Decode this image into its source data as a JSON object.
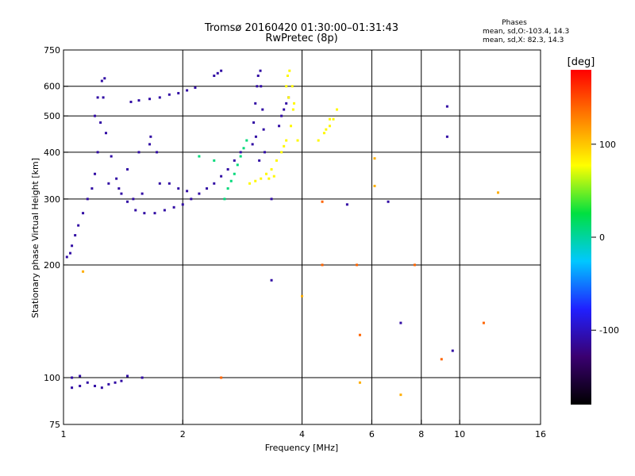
{
  "chart_data": {
    "type": "scatter",
    "title": "Tromsø 20160420 01:30:00–01:31:43",
    "subtitle": "RwPretec (8p)",
    "xlabel": "Frequency [MHz]",
    "ylabel": "Stationary phase Virtual Height [km]",
    "x_scale": "log2",
    "y_scale": "log",
    "xlim": [
      1,
      16
    ],
    "ylim": [
      75,
      750
    ],
    "xticks": [
      1,
      2,
      4,
      6,
      8,
      10,
      16
    ],
    "xtick_labels": [
      "1",
      "2",
      "4",
      "6",
      "8",
      "10",
      "16"
    ],
    "yticks": [
      75,
      100,
      200,
      300,
      400,
      500,
      600,
      750
    ],
    "ytick_labels": [
      "75",
      "100",
      "200",
      "300",
      "400",
      "500",
      "600",
      "750"
    ],
    "grid": true,
    "stats_header": "Phases",
    "stats": [
      "mean, sd,O:-103.4, 14.3",
      "mean, sd,X:  82.3, 14.3"
    ],
    "colorbar": {
      "label": "[deg]",
      "range": [
        -180,
        180
      ],
      "ticks": [
        100,
        0,
        -100
      ],
      "tick_labels": [
        "100",
        "0",
        "-100"
      ],
      "colors": [
        "#000000",
        "#3a0070",
        "#2020ff",
        "#00c8ff",
        "#00e040",
        "#ffff00",
        "#ff8000",
        "#ff0000"
      ]
    },
    "series": [
      {
        "phase": -110,
        "values": [
          [
            1.02,
            210
          ],
          [
            1.04,
            215
          ],
          [
            1.05,
            225
          ],
          [
            1.07,
            240
          ],
          [
            1.09,
            255
          ],
          [
            1.12,
            275
          ],
          [
            1.15,
            300
          ],
          [
            1.18,
            320
          ],
          [
            1.2,
            350
          ],
          [
            1.22,
            400
          ],
          [
            1.24,
            480
          ],
          [
            1.26,
            560
          ],
          [
            1.27,
            630
          ],
          [
            1.25,
            620
          ],
          [
            1.22,
            560
          ],
          [
            1.2,
            500
          ],
          [
            1.28,
            450
          ],
          [
            1.32,
            390
          ],
          [
            1.36,
            340
          ],
          [
            1.4,
            310
          ],
          [
            1.45,
            295
          ],
          [
            1.52,
            280
          ],
          [
            1.6,
            275
          ],
          [
            1.7,
            275
          ],
          [
            1.8,
            280
          ],
          [
            1.9,
            285
          ],
          [
            2.0,
            290
          ],
          [
            2.1,
            300
          ],
          [
            2.2,
            310
          ],
          [
            2.3,
            320
          ],
          [
            2.4,
            330
          ],
          [
            2.5,
            345
          ],
          [
            2.6,
            360
          ],
          [
            2.7,
            380
          ],
          [
            2.8,
            400
          ],
          [
            1.3,
            330
          ],
          [
            1.38,
            320
          ],
          [
            1.5,
            300
          ],
          [
            1.58,
            310
          ],
          [
            1.75,
            330
          ],
          [
            1.85,
            330
          ],
          [
            1.95,
            320
          ],
          [
            2.05,
            315
          ],
          [
            1.45,
            360
          ],
          [
            1.55,
            400
          ],
          [
            1.65,
            420
          ],
          [
            1.72,
            400
          ],
          [
            1.66,
            440
          ],
          [
            1.48,
            545
          ],
          [
            1.55,
            550
          ],
          [
            1.65,
            555
          ],
          [
            1.75,
            560
          ],
          [
            1.85,
            570
          ],
          [
            1.95,
            575
          ],
          [
            2.05,
            585
          ],
          [
            2.15,
            595
          ],
          [
            2.4,
            640
          ],
          [
            2.45,
            650
          ],
          [
            2.5,
            660
          ],
          [
            3.0,
            420
          ],
          [
            3.02,
            480
          ],
          [
            3.05,
            540
          ],
          [
            3.08,
            600
          ],
          [
            3.1,
            640
          ],
          [
            3.15,
            600
          ],
          [
            3.18,
            520
          ],
          [
            3.2,
            460
          ],
          [
            3.22,
            400
          ],
          [
            3.12,
            380
          ],
          [
            3.06,
            440
          ],
          [
            3.14,
            660
          ],
          [
            3.5,
            470
          ],
          [
            3.55,
            500
          ],
          [
            3.6,
            520
          ],
          [
            3.65,
            540
          ],
          [
            3.7,
            560
          ],
          [
            1.05,
            94
          ],
          [
            1.1,
            95
          ],
          [
            1.15,
            97
          ],
          [
            1.2,
            95
          ],
          [
            1.25,
            94
          ],
          [
            1.3,
            96
          ],
          [
            1.35,
            97
          ],
          [
            1.4,
            98
          ],
          [
            1.05,
            100
          ],
          [
            1.1,
            101
          ],
          [
            1.45,
            101
          ],
          [
            1.58,
            100
          ],
          [
            3.35,
            300
          ],
          [
            3.35,
            182
          ],
          [
            9.3,
            530
          ],
          [
            9.3,
            440
          ],
          [
            7.1,
            140
          ],
          [
            6.6,
            295
          ],
          [
            5.2,
            290
          ],
          [
            9.6,
            118
          ]
        ]
      },
      {
        "phase": 80,
        "values": [
          [
            2.95,
            330
          ],
          [
            3.05,
            335
          ],
          [
            3.15,
            340
          ],
          [
            3.25,
            350
          ],
          [
            3.35,
            360
          ],
          [
            3.45,
            380
          ],
          [
            3.55,
            400
          ],
          [
            3.65,
            430
          ],
          [
            3.75,
            470
          ],
          [
            3.8,
            520
          ],
          [
            3.7,
            560
          ],
          [
            3.65,
            600
          ],
          [
            3.68,
            640
          ],
          [
            3.72,
            660
          ],
          [
            3.78,
            600
          ],
          [
            3.82,
            540
          ],
          [
            3.9,
            430
          ],
          [
            3.4,
            345
          ],
          [
            3.3,
            340
          ],
          [
            3.6,
            415
          ],
          [
            4.4,
            430
          ],
          [
            4.55,
            450
          ],
          [
            4.7,
            470
          ],
          [
            4.8,
            490
          ],
          [
            4.9,
            520
          ],
          [
            4.7,
            490
          ],
          [
            4.6,
            460
          ]
        ]
      },
      {
        "phase": 10,
        "values": [
          [
            2.55,
            300
          ],
          [
            2.6,
            320
          ],
          [
            2.65,
            335
          ],
          [
            2.7,
            350
          ],
          [
            2.75,
            370
          ],
          [
            2.8,
            390
          ],
          [
            2.85,
            410
          ],
          [
            2.9,
            430
          ],
          [
            2.4,
            380
          ],
          [
            2.2,
            390
          ]
        ]
      },
      {
        "phase": 140,
        "values": [
          [
            4.5,
            295
          ],
          [
            4.5,
            200
          ],
          [
            5.5,
            200
          ],
          [
            7.7,
            200
          ],
          [
            11.5,
            140
          ],
          [
            2.5,
            100
          ],
          [
            5.6,
            130
          ],
          [
            9.0,
            112
          ]
        ]
      },
      {
        "phase": 110,
        "values": [
          [
            5.6,
            97
          ],
          [
            7.1,
            90
          ],
          [
            12.5,
            312
          ],
          [
            6.1,
            385
          ],
          [
            4.0,
            165
          ],
          [
            1.12,
            192
          ],
          [
            6.1,
            325
          ]
        ]
      }
    ]
  }
}
